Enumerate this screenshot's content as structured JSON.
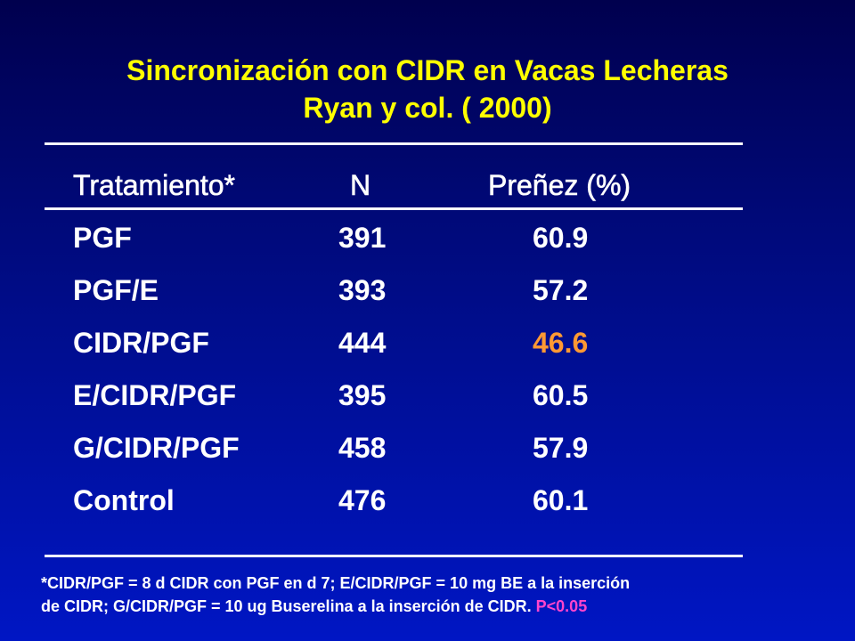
{
  "title": {
    "line1": "Sincronización con CIDR en Vacas Lecheras",
    "line2": "Ryan y col. ( 2000)"
  },
  "table": {
    "headers": [
      "Tratamiento*",
      "N",
      "Preñez (%)"
    ],
    "rows": [
      {
        "treatment": "PGF",
        "n": "391",
        "pregnancy": "60.9"
      },
      {
        "treatment": "PGF/E",
        "n": "393",
        "pregnancy": "57.2"
      },
      {
        "treatment": "CIDR/PGF",
        "n": "444",
        "pregnancy": "46.6"
      },
      {
        "treatment": "E/CIDR/PGF",
        "n": "395",
        "pregnancy": "60.5"
      },
      {
        "treatment": "G/CIDR/PGF",
        "n": "458",
        "pregnancy": "57.9"
      },
      {
        "treatment": "Control",
        "n": "476",
        "pregnancy": "60.1"
      }
    ]
  },
  "footnote": {
    "line1": "*CIDR/PGF = 8 d CIDR con PGF en d 7; E/CIDR/PGF = 10 mg BE a la inserción",
    "line2": "de CIDR; G/CIDR/PGF = 10 ug Buserelina a la inserción de CIDR.",
    "pvalue": "P<0.05"
  },
  "colors": {
    "title": "#ffff00",
    "text": "#ffffff",
    "highlight": "#ff9933",
    "pvalue": "#ff44cc",
    "background_top": "#00004e",
    "background_bottom": "#0016c4"
  }
}
